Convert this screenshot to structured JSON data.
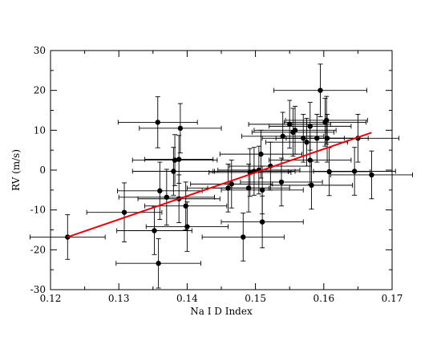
{
  "chart_data": {
    "type": "scatter",
    "xlabel": "Na I D Index",
    "ylabel": "RV (m/s)",
    "xlim": [
      0.12,
      0.17
    ],
    "ylim": [
      -30,
      30
    ],
    "x_ticks": [
      0.12,
      0.13,
      0.14,
      0.15,
      0.16,
      0.17
    ],
    "x_tick_labels": [
      "0.12",
      "0.13",
      "0.14",
      "0.15",
      "0.16",
      "0.17"
    ],
    "y_ticks": [
      -30,
      -20,
      -10,
      0,
      10,
      20,
      30
    ],
    "y_tick_labels": [
      "-30",
      "-20",
      "-10",
      "0",
      "10",
      "20",
      "30"
    ],
    "grid": false,
    "colors": {
      "points": "#000000",
      "fit_line": "#e8000b",
      "axes": "#000000"
    },
    "points": [
      {
        "x": 0.1225,
        "y": -16.8,
        "xerr": 0.0055,
        "yerr": 5.6
      },
      {
        "x": 0.1308,
        "y": -10.6,
        "xerr": 0.0055,
        "yerr": 7.4
      },
      {
        "x": 0.1352,
        "y": -15.2,
        "xerr": 0.0055,
        "yerr": 6.0
      },
      {
        "x": 0.1357,
        "y": 12.0,
        "xerr": 0.0058,
        "yerr": 6.4
      },
      {
        "x": 0.1358,
        "y": -23.4,
        "xerr": 0.0062,
        "yerr": 6.2
      },
      {
        "x": 0.136,
        "y": -5.2,
        "xerr": 0.0062,
        "yerr": 7.2
      },
      {
        "x": 0.137,
        "y": -6.8,
        "xerr": 0.007,
        "yerr": 7.0
      },
      {
        "x": 0.138,
        "y": -0.3,
        "xerr": 0.006,
        "yerr": 6.0
      },
      {
        "x": 0.1382,
        "y": 2.5,
        "xerr": 0.0062,
        "yerr": 6.4
      },
      {
        "x": 0.1388,
        "y": -7.2,
        "xerr": 0.006,
        "yerr": 6.0
      },
      {
        "x": 0.1388,
        "y": 2.7,
        "xerr": 0.005,
        "yerr": 6.0
      },
      {
        "x": 0.139,
        "y": 10.5,
        "xerr": 0.006,
        "yerr": 6.2
      },
      {
        "x": 0.1398,
        "y": -9.0,
        "xerr": 0.006,
        "yerr": 6.0
      },
      {
        "x": 0.14,
        "y": -14.2,
        "xerr": 0.006,
        "yerr": 6.2
      },
      {
        "x": 0.146,
        "y": -4.5,
        "xerr": 0.006,
        "yerr": 6.0
      },
      {
        "x": 0.1465,
        "y": -3.5,
        "xerr": 0.006,
        "yerr": 6.0
      },
      {
        "x": 0.1482,
        "y": -16.8,
        "xerr": 0.006,
        "yerr": 6.0
      },
      {
        "x": 0.149,
        "y": -4.5,
        "xerr": 0.006,
        "yerr": 6.0
      },
      {
        "x": 0.1492,
        "y": -0.6,
        "xerr": 0.006,
        "yerr": 6.0
      },
      {
        "x": 0.1498,
        "y": -0.3,
        "xerr": 0.006,
        "yerr": 6.0
      },
      {
        "x": 0.1505,
        "y": 0.0,
        "xerr": 0.006,
        "yerr": 6.0
      },
      {
        "x": 0.1508,
        "y": 4.0,
        "xerr": 0.006,
        "yerr": 6.0
      },
      {
        "x": 0.151,
        "y": -13.0,
        "xerr": 0.006,
        "yerr": 6.5
      },
      {
        "x": 0.151,
        "y": -5.0,
        "xerr": 0.006,
        "yerr": 6.0
      },
      {
        "x": 0.1522,
        "y": 1.0,
        "xerr": 0.006,
        "yerr": 6.0
      },
      {
        "x": 0.1538,
        "y": -3.0,
        "xerr": 0.006,
        "yerr": 6.0
      },
      {
        "x": 0.154,
        "y": 8.5,
        "xerr": 0.006,
        "yerr": 6.0
      },
      {
        "x": 0.155,
        "y": 11.5,
        "xerr": 0.006,
        "yerr": 6.0
      },
      {
        "x": 0.1555,
        "y": 9.5,
        "xerr": 0.006,
        "yerr": 6.0
      },
      {
        "x": 0.1558,
        "y": 10.0,
        "xerr": 0.006,
        "yerr": 6.0
      },
      {
        "x": 0.157,
        "y": 8.0,
        "xerr": 0.006,
        "yerr": 6.0
      },
      {
        "x": 0.1575,
        "y": 7.0,
        "xerr": 0.006,
        "yerr": 6.0
      },
      {
        "x": 0.158,
        "y": 11.0,
        "xerr": 0.006,
        "yerr": 6.0
      },
      {
        "x": 0.158,
        "y": 2.5,
        "xerr": 0.006,
        "yerr": 6.0
      },
      {
        "x": 0.1582,
        "y": -3.8,
        "xerr": 0.006,
        "yerr": 6.0
      },
      {
        "x": 0.159,
        "y": 8.0,
        "xerr": 0.006,
        "yerr": 6.0
      },
      {
        "x": 0.1595,
        "y": 20.0,
        "xerr": 0.0068,
        "yerr": 6.6
      },
      {
        "x": 0.1602,
        "y": 12.0,
        "xerr": 0.006,
        "yerr": 6.0
      },
      {
        "x": 0.1604,
        "y": 12.5,
        "xerr": 0.006,
        "yerr": 6.0
      },
      {
        "x": 0.1605,
        "y": 8.0,
        "xerr": 0.006,
        "yerr": 6.0
      },
      {
        "x": 0.1608,
        "y": -0.4,
        "xerr": 0.006,
        "yerr": 6.0
      },
      {
        "x": 0.1645,
        "y": -0.3,
        "xerr": 0.006,
        "yerr": 6.0
      },
      {
        "x": 0.165,
        "y": 8.0,
        "xerr": 0.006,
        "yerr": 6.0
      },
      {
        "x": 0.167,
        "y": -1.2,
        "xerr": 0.006,
        "yerr": 6.0
      }
    ],
    "fit_line": {
      "x": [
        0.1225,
        0.167
      ],
      "y": [
        -16.8,
        9.4
      ]
    }
  }
}
